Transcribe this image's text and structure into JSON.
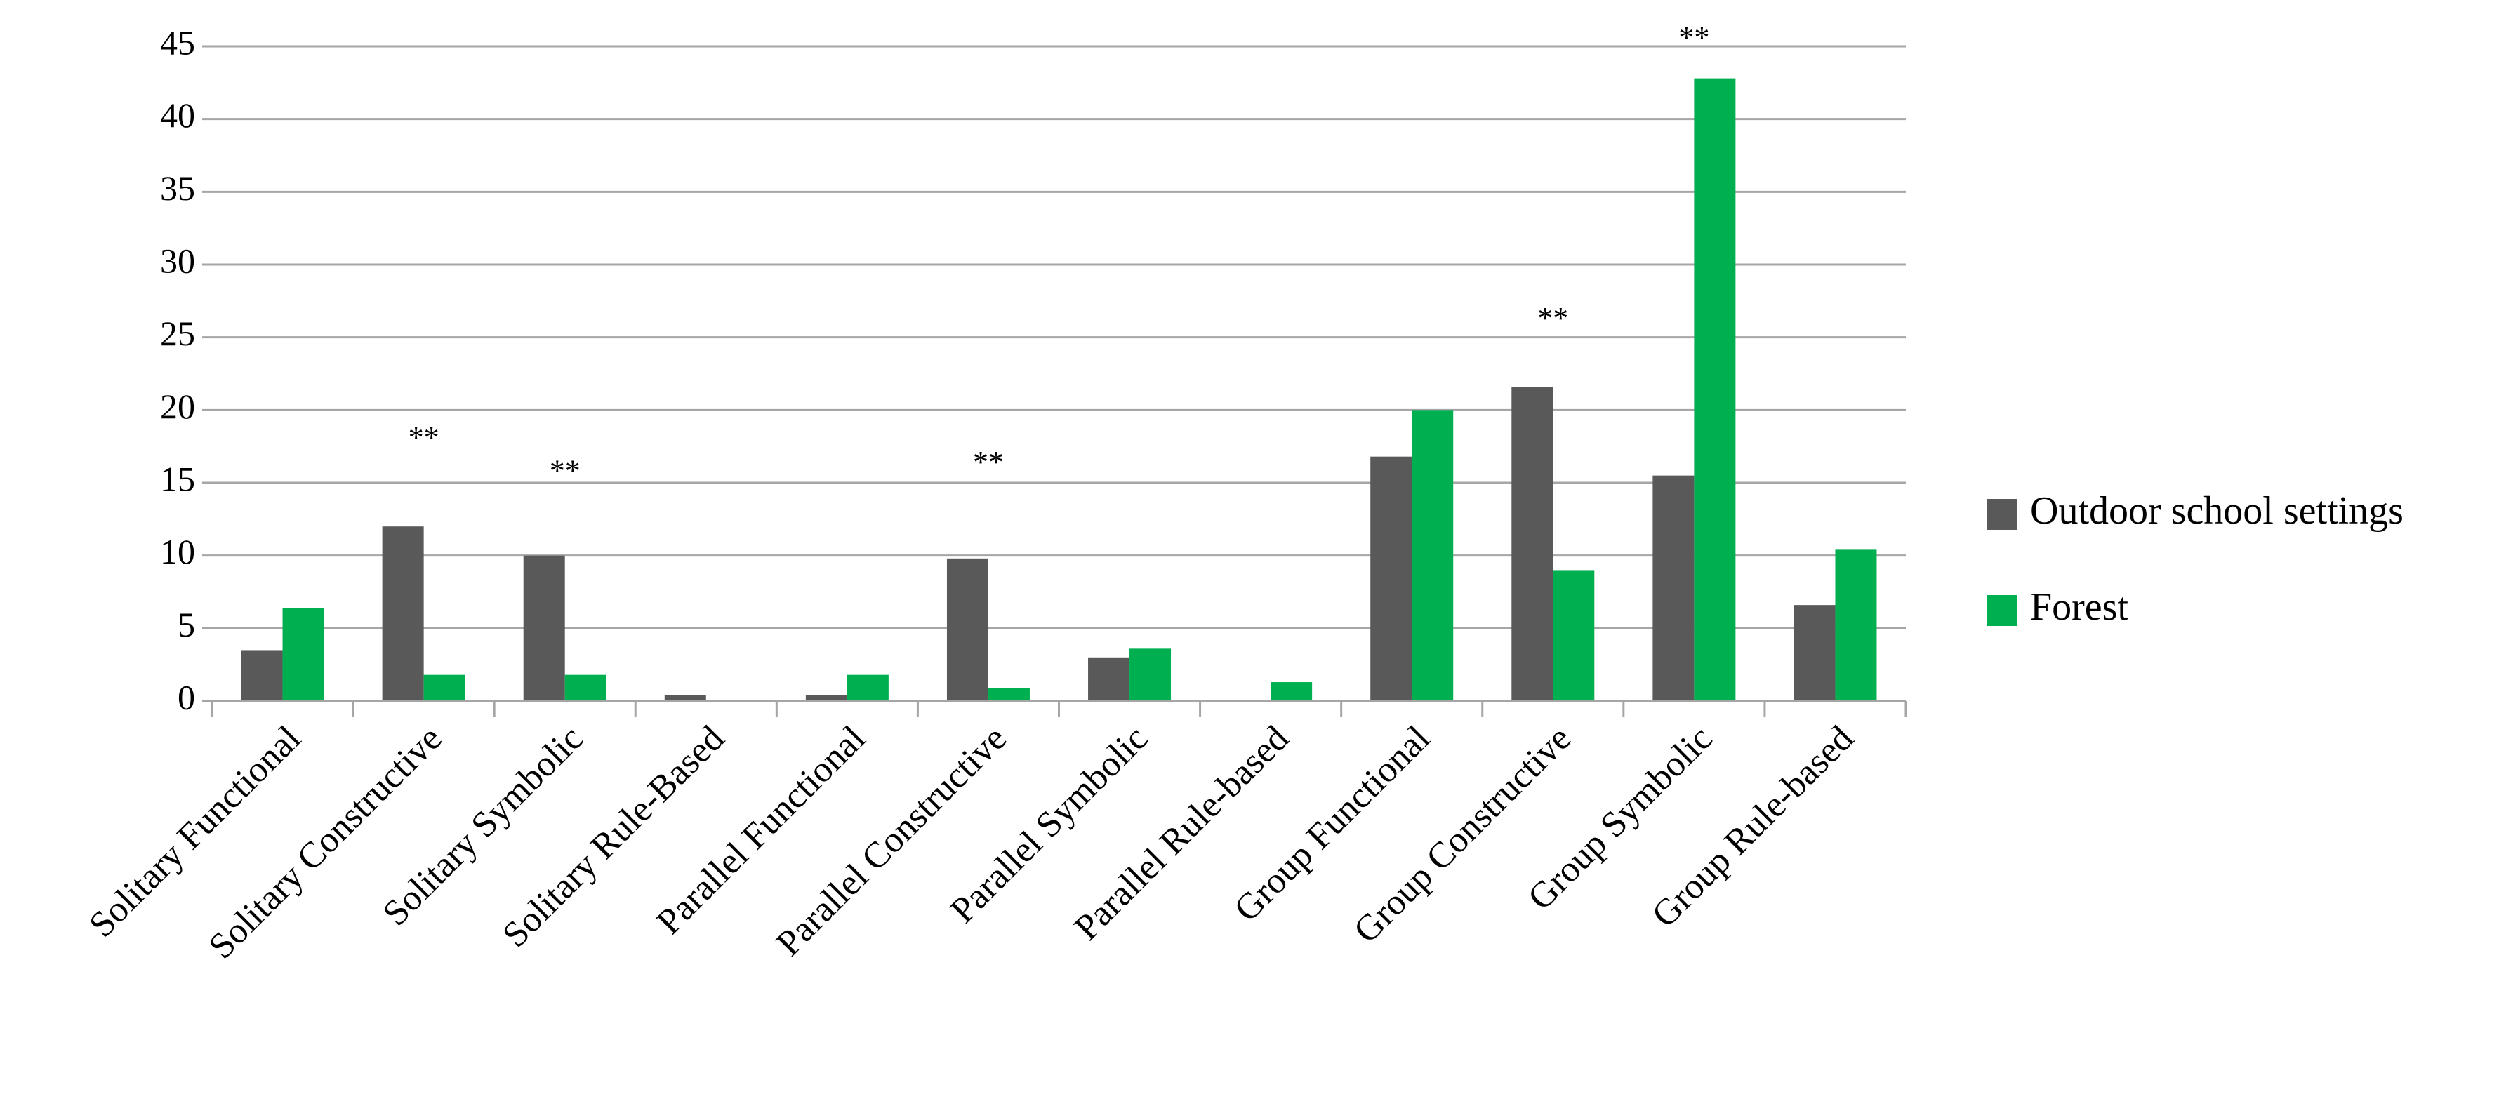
{
  "chart_data": {
    "type": "bar",
    "categories": [
      "Solitary Functional",
      "Solitary Constructive",
      "Solitary Symbolic",
      "Solitary Rule-Based",
      "Parallel Functional",
      "Parallel Constructive",
      "Parallel Symbolic",
      "Parallel Rule-based",
      "Group Functional",
      "Group Constructive",
      "Group Symbolic",
      "Group Rule-based"
    ],
    "series": [
      {
        "name": "Outdoor school settings",
        "color": "#595959",
        "values": [
          3.5,
          12,
          10,
          0.4,
          0.4,
          9.8,
          3.0,
          0,
          16.8,
          21.6,
          15.5,
          6.6
        ]
      },
      {
        "name": "Forest",
        "color": "#00b050",
        "values": [
          6.4,
          1.8,
          1.8,
          0,
          1.8,
          0.9,
          3.6,
          1.3,
          20,
          9.0,
          42.8,
          10.4
        ]
      }
    ],
    "annotations": [
      {
        "text": "**",
        "category": 1,
        "y": 17.9
      },
      {
        "text": "**",
        "category": 2,
        "y": 15.6
      },
      {
        "text": "**",
        "category": 5,
        "y": 16.2
      },
      {
        "text": "**",
        "category": 9,
        "y": 26.1
      },
      {
        "text": "**",
        "category": 10,
        "y": 45.4
      }
    ],
    "ylim": [
      0,
      45
    ],
    "yticks": [
      0,
      5,
      10,
      15,
      20,
      25,
      30,
      35,
      40,
      45
    ],
    "grid": true,
    "legend": "right"
  }
}
